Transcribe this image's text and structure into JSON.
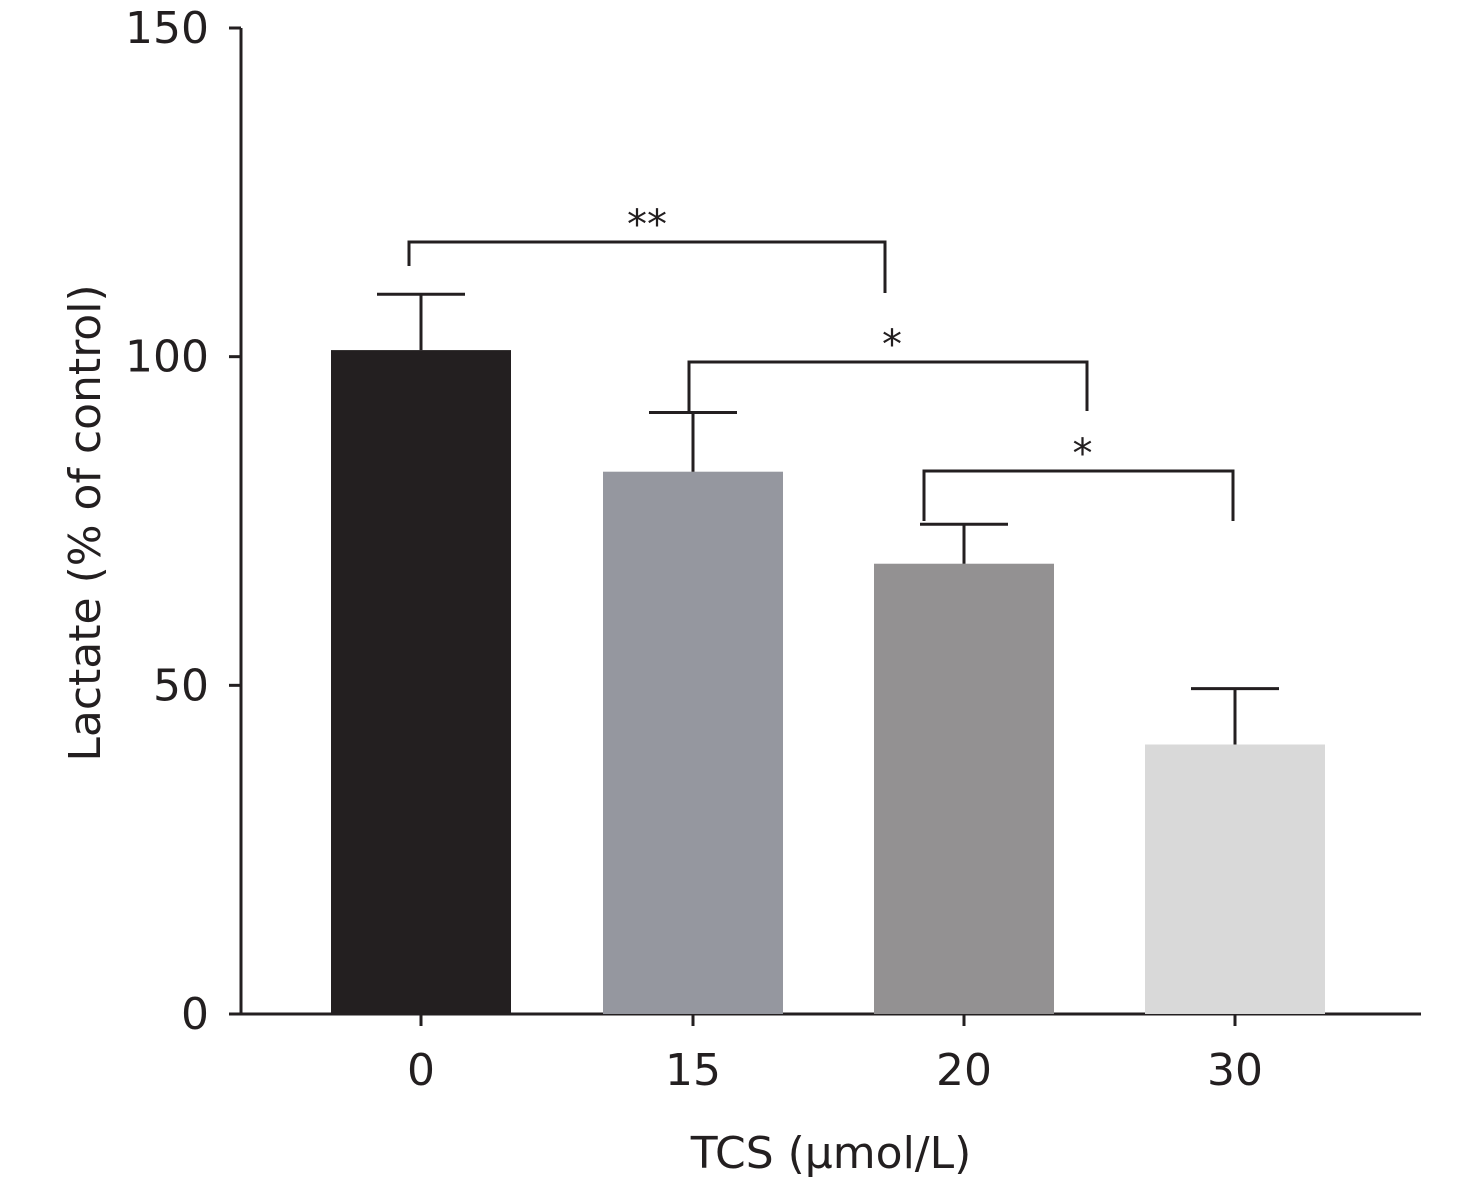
{
  "chart_data": {
    "type": "bar",
    "title": "",
    "xlabel": "TCS (μmol/L)",
    "ylabel": "Lactate (% of control)",
    "categories": [
      "0",
      "15",
      "20",
      "30"
    ],
    "values": [
      101,
      82.5,
      68.5,
      41
    ],
    "errors": [
      8.5,
      9,
      6,
      8.5
    ],
    "colors": [
      "#231f20",
      "#95979f",
      "#939192",
      "#d9d9d9"
    ],
    "ylim": [
      0,
      150
    ],
    "yticks": [
      "0",
      "50",
      "100",
      "150"
    ],
    "grid": false,
    "legend": "none",
    "significance": [
      {
        "from": "0",
        "to": "20",
        "label": "**"
      },
      {
        "from": "15",
        "to": "30",
        "label": "*"
      },
      {
        "from": "20",
        "to": "30",
        "label": "*"
      }
    ]
  }
}
